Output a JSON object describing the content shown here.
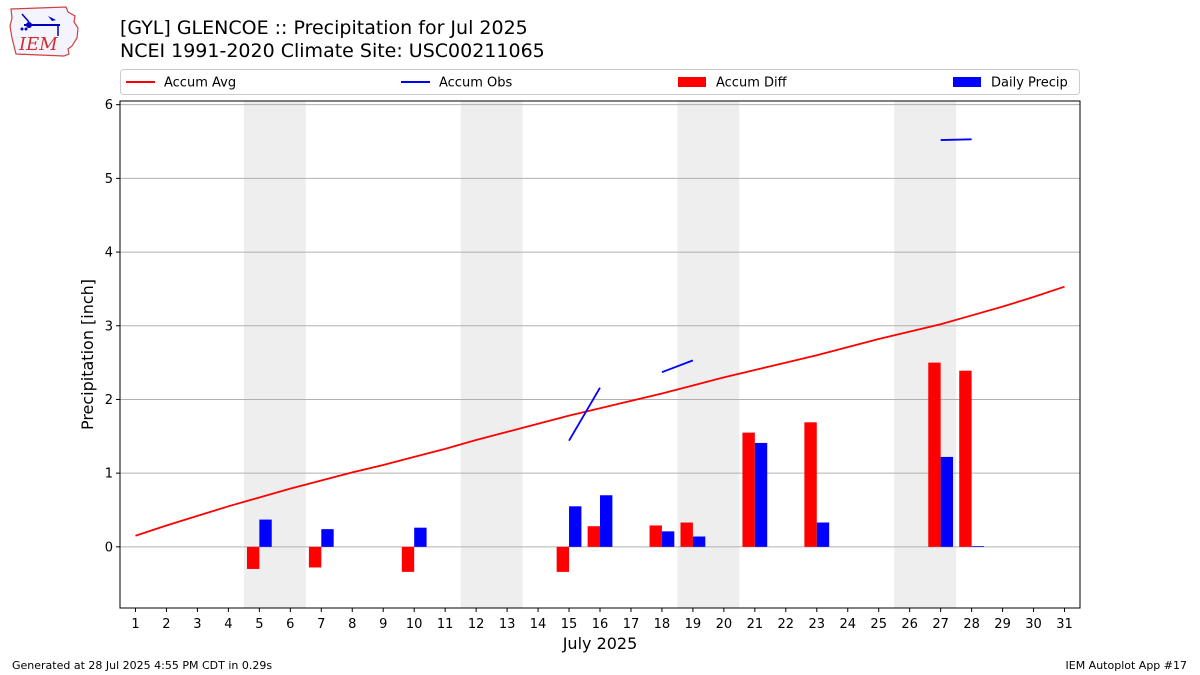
{
  "header": {
    "title_line1": "[GYL] GLENCOE :: Precipitation for Jul 2025",
    "title_line2": "NCEI 1991-2020 Climate Site: USC00211065",
    "logo_text": "IEM"
  },
  "footer": {
    "generated": "Generated at 28 Jul 2025 4:55 PM CDT in 0.29s",
    "app": "IEM Autoplot App #17"
  },
  "colors": {
    "accum_avg": "#ff0000",
    "accum_obs": "#0000ff",
    "accum_diff": "#ff0000",
    "daily_precip": "#0000ff",
    "weekend_shade": "#eeeeee",
    "grid": "#b0b0b0"
  },
  "chart_data": {
    "type": "bar",
    "xlabel": "July 2025",
    "ylabel": "Precipitation [inch]",
    "xlim": [
      0.5,
      31.5
    ],
    "ylim": [
      -0.83,
      6.05
    ],
    "yticks": [
      0,
      1,
      2,
      3,
      4,
      5,
      6
    ],
    "x_ticks": [
      1,
      2,
      3,
      4,
      5,
      6,
      7,
      8,
      9,
      10,
      11,
      12,
      13,
      14,
      15,
      16,
      17,
      18,
      19,
      20,
      21,
      22,
      23,
      24,
      25,
      26,
      27,
      28,
      29,
      30,
      31
    ],
    "grid": "horizontal",
    "legend_position": "top",
    "legend": [
      "Accum Avg",
      "Accum Obs",
      "Accum Diff",
      "Daily Precip"
    ],
    "weekends": [
      [
        5,
        6
      ],
      [
        12,
        13
      ],
      [
        19,
        20
      ],
      [
        26,
        27
      ]
    ],
    "series": [
      {
        "name": "Accum Avg",
        "type": "line",
        "x": [
          1,
          2,
          3,
          4,
          5,
          6,
          7,
          8,
          9,
          10,
          11,
          12,
          13,
          14,
          15,
          16,
          17,
          18,
          19,
          20,
          21,
          22,
          23,
          24,
          25,
          26,
          27,
          28,
          29,
          30,
          31
        ],
        "values": [
          0.15,
          0.29,
          0.42,
          0.55,
          0.67,
          0.79,
          0.9,
          1.01,
          1.11,
          1.22,
          1.33,
          1.45,
          1.56,
          1.67,
          1.78,
          1.88,
          1.98,
          2.08,
          2.19,
          2.3,
          2.4,
          2.5,
          2.6,
          2.71,
          2.82,
          2.92,
          3.02,
          3.14,
          3.26,
          3.39,
          3.53
        ]
      },
      {
        "name": "Accum Obs",
        "type": "line",
        "segments": [
          {
            "x": [
              15,
              16
            ],
            "values": [
              1.44,
              2.16
            ]
          },
          {
            "x": [
              18,
              19
            ],
            "values": [
              2.37,
              2.53
            ]
          },
          {
            "x": [
              27,
              28
            ],
            "values": [
              5.52,
              5.53
            ]
          }
        ]
      },
      {
        "name": "Accum Diff",
        "type": "bar",
        "x": [
          5,
          7,
          10,
          15,
          16,
          18,
          19,
          21,
          23,
          27,
          28
        ],
        "values": [
          -0.3,
          -0.28,
          -0.34,
          -0.34,
          0.28,
          0.29,
          0.33,
          1.55,
          1.69,
          2.5,
          2.39
        ]
      },
      {
        "name": "Daily Precip",
        "type": "bar",
        "x": [
          5,
          7,
          10,
          15,
          16,
          18,
          19,
          21,
          23,
          27,
          28
        ],
        "values": [
          0.37,
          0.24,
          0.26,
          0.55,
          0.7,
          0.21,
          0.14,
          1.41,
          0.33,
          1.22,
          0.01
        ]
      }
    ]
  }
}
